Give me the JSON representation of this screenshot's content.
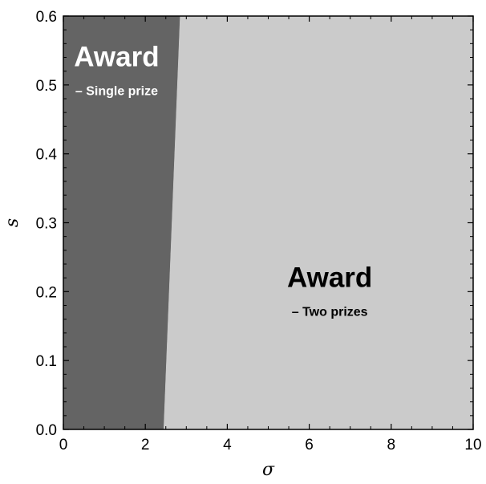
{
  "chart_data": {
    "type": "area",
    "title": "",
    "xlabel": "σ",
    "ylabel": "s",
    "xlim": [
      0,
      10
    ],
    "ylim": [
      0,
      0.6
    ],
    "x_ticks": [
      0,
      2,
      4,
      6,
      8,
      10
    ],
    "x_tick_labels": [
      "0",
      "2",
      "4",
      "6",
      "8",
      "10"
    ],
    "y_ticks": [
      0.0,
      0.1,
      0.2,
      0.3,
      0.4,
      0.5,
      0.6
    ],
    "y_tick_labels": [
      "0.0",
      "0.1",
      "0.2",
      "0.3",
      "0.4",
      "0.5",
      "0.6"
    ],
    "grid": false,
    "boundary": {
      "x": [
        2.45,
        2.85
      ],
      "y": [
        0.0,
        0.6
      ]
    },
    "regions": [
      {
        "id": "single",
        "title": "Award",
        "subtitle": "– Single prize",
        "color": "#646464",
        "text_color": "#ffffff",
        "label_at": {
          "x": 1.3,
          "y": 0.52
        },
        "polygon": [
          [
            0,
            0
          ],
          [
            2.45,
            0
          ],
          [
            2.85,
            0.6
          ],
          [
            0,
            0.6
          ]
        ]
      },
      {
        "id": "two",
        "title": "Award",
        "subtitle": "– Two prizes",
        "color": "#cbcbcb",
        "text_color": "#000000",
        "label_at": {
          "x": 6.5,
          "y": 0.2
        },
        "polygon": [
          [
            2.45,
            0
          ],
          [
            10,
            0
          ],
          [
            10,
            0.6
          ],
          [
            2.85,
            0.6
          ]
        ]
      }
    ]
  }
}
